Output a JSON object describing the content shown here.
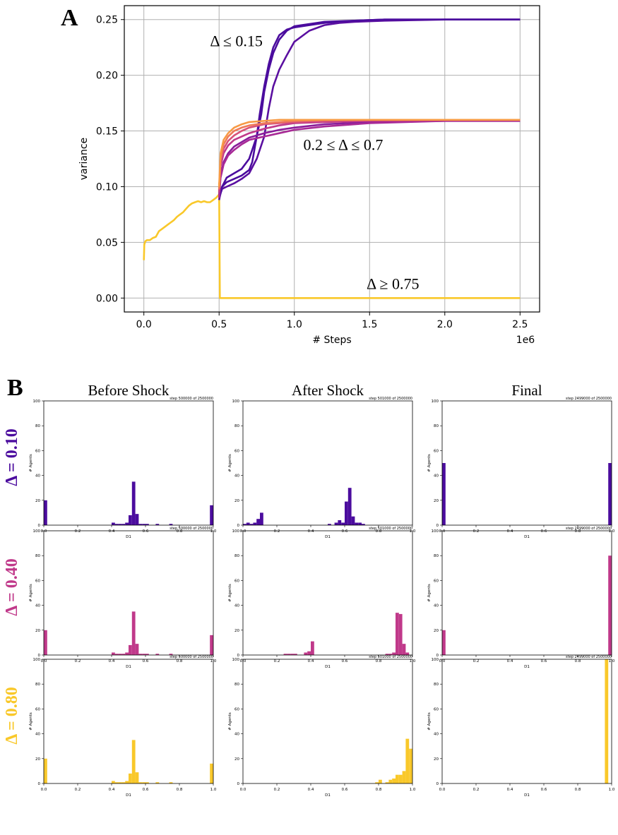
{
  "panel_a_label": "A",
  "panel_b_label": "B",
  "colors": {
    "d010": "#4b0c9e",
    "d040": "#c0398a",
    "d080": "#f9c82a",
    "grid": "#b0b0b0",
    "axis": "#000000"
  },
  "chart_data": [
    {
      "type": "line",
      "panel": "A",
      "xlabel": "# Steps",
      "ylabel": "variance",
      "x_multiplier": "1e6",
      "xlim": [
        -0.13,
        2.63
      ],
      "ylim": [
        -0.0125,
        0.2625
      ],
      "x_ticks": [
        0.0,
        0.5,
        1.0,
        1.5,
        2.0,
        2.5
      ],
      "x_tick_labels": [
        "0.0",
        "0.5",
        "1.0",
        "1.5",
        "2.0",
        "2.5"
      ],
      "y_ticks": [
        0.0,
        0.05,
        0.1,
        0.15,
        0.2,
        0.25
      ],
      "y_tick_labels": [
        "0.00",
        "0.05",
        "0.10",
        "0.15",
        "0.20",
        "0.25"
      ],
      "grid": true,
      "annotations": [
        {
          "text": "Δ ≤ 0.15",
          "x": 0.44,
          "y": 0.226
        },
        {
          "text": "0.2 ≤ Δ ≤ 0.7",
          "x": 1.06,
          "y": 0.133
        },
        {
          "text": "Δ ≥ 0.75",
          "x": 1.48,
          "y": 0.008
        }
      ],
      "series": [
        {
          "color": "#f9c82a",
          "x": [
            0.0,
            0.003,
            0.01,
            0.02,
            0.04,
            0.06,
            0.08,
            0.1,
            0.12,
            0.14,
            0.16,
            0.18,
            0.2,
            0.22,
            0.24,
            0.26,
            0.28,
            0.3,
            0.32,
            0.34,
            0.36,
            0.38,
            0.4,
            0.42,
            0.44,
            0.46,
            0.48,
            0.5
          ],
          "y": [
            0.034,
            0.048,
            0.051,
            0.052,
            0.052,
            0.054,
            0.055,
            0.06,
            0.062,
            0.064,
            0.066,
            0.068,
            0.07,
            0.073,
            0.075,
            0.077,
            0.08,
            0.083,
            0.085,
            0.086,
            0.087,
            0.086,
            0.087,
            0.086,
            0.086,
            0.088,
            0.09,
            0.093
          ]
        },
        {
          "color": "#f9c82a",
          "x": [
            0.5,
            0.5,
            0.505,
            2.5
          ],
          "y": [
            0.093,
            0.103,
            0.0,
            0.0
          ]
        },
        {
          "color": "#4b0c9e",
          "x": [
            0.5,
            0.51,
            0.52,
            0.55,
            0.6,
            0.65,
            0.7,
            0.72,
            0.75,
            0.77,
            0.8,
            0.83,
            0.86,
            0.9,
            0.95,
            1.0,
            1.1,
            1.2,
            1.4,
            1.6,
            2.0,
            2.5
          ],
          "y": [
            0.09,
            0.096,
            0.1,
            0.104,
            0.107,
            0.11,
            0.115,
            0.122,
            0.145,
            0.165,
            0.19,
            0.21,
            0.225,
            0.236,
            0.241,
            0.243,
            0.245,
            0.247,
            0.249,
            0.25,
            0.25,
            0.25
          ]
        },
        {
          "color": "#5a0fa0",
          "x": [
            0.5,
            0.51,
            0.52,
            0.55,
            0.6,
            0.65,
            0.7,
            0.75,
            0.8,
            0.83,
            0.86,
            0.9,
            0.95,
            1.0,
            1.1,
            1.2,
            1.3,
            1.4,
            1.6,
            2.0,
            2.5
          ],
          "y": [
            0.088,
            0.094,
            0.098,
            0.1,
            0.103,
            0.107,
            0.112,
            0.125,
            0.145,
            0.17,
            0.19,
            0.205,
            0.218,
            0.23,
            0.24,
            0.245,
            0.247,
            0.248,
            0.249,
            0.25,
            0.25
          ]
        },
        {
          "color": "#4b0c9e",
          "x": [
            0.5,
            0.51,
            0.52,
            0.55,
            0.6,
            0.65,
            0.7,
            0.75,
            0.78,
            0.8,
            0.83,
            0.86,
            0.9,
            0.95,
            1.0,
            1.1,
            1.2,
            1.4,
            1.6,
            2.0,
            2.5
          ],
          "y": [
            0.09,
            0.094,
            0.1,
            0.108,
            0.112,
            0.116,
            0.125,
            0.145,
            0.165,
            0.185,
            0.205,
            0.22,
            0.232,
            0.24,
            0.244,
            0.246,
            0.248,
            0.249,
            0.25,
            0.25,
            0.25
          ]
        },
        {
          "color": "#8a1c9a",
          "x": [
            0.5,
            0.51,
            0.53,
            0.56,
            0.6,
            0.65,
            0.7,
            0.8,
            0.9,
            1.0,
            1.2,
            1.5,
            2.0,
            2.5
          ],
          "y": [
            0.092,
            0.11,
            0.122,
            0.13,
            0.136,
            0.14,
            0.144,
            0.148,
            0.151,
            0.153,
            0.156,
            0.158,
            0.159,
            0.159
          ]
        },
        {
          "color": "#a82a96",
          "x": [
            0.5,
            0.51,
            0.53,
            0.56,
            0.6,
            0.65,
            0.7,
            0.8,
            0.9,
            1.0,
            1.2,
            1.5,
            2.0,
            2.5
          ],
          "y": [
            0.09,
            0.108,
            0.12,
            0.128,
            0.133,
            0.138,
            0.142,
            0.145,
            0.148,
            0.151,
            0.154,
            0.157,
            0.159,
            0.159
          ]
        },
        {
          "color": "#c0398a",
          "x": [
            0.5,
            0.51,
            0.53,
            0.56,
            0.6,
            0.65,
            0.7,
            0.8,
            0.9,
            1.0,
            1.2,
            1.5,
            2.0,
            2.5
          ],
          "y": [
            0.095,
            0.118,
            0.13,
            0.137,
            0.142,
            0.145,
            0.148,
            0.152,
            0.155,
            0.157,
            0.158,
            0.159,
            0.16,
            0.16
          ]
        },
        {
          "color": "#d8527a",
          "x": [
            0.5,
            0.51,
            0.53,
            0.56,
            0.6,
            0.65,
            0.7,
            0.8,
            0.9,
            1.0,
            1.2,
            1.5,
            2.0,
            2.5
          ],
          "y": [
            0.097,
            0.122,
            0.134,
            0.141,
            0.146,
            0.15,
            0.153,
            0.156,
            0.157,
            0.158,
            0.159,
            0.16,
            0.16,
            0.16
          ]
        },
        {
          "color": "#ef7a58",
          "x": [
            0.5,
            0.51,
            0.53,
            0.56,
            0.6,
            0.65,
            0.7,
            0.8,
            0.9,
            1.0,
            1.2,
            1.5,
            2.0,
            2.5
          ],
          "y": [
            0.098,
            0.125,
            0.138,
            0.145,
            0.15,
            0.153,
            0.155,
            0.157,
            0.158,
            0.159,
            0.16,
            0.16,
            0.16,
            0.16
          ]
        },
        {
          "color": "#f79a45",
          "x": [
            0.5,
            0.51,
            0.53,
            0.56,
            0.6,
            0.65,
            0.7,
            0.8,
            0.9,
            1.0,
            1.2,
            1.5,
            2.0,
            2.5
          ],
          "y": [
            0.1,
            0.13,
            0.142,
            0.148,
            0.153,
            0.156,
            0.158,
            0.159,
            0.16,
            0.16,
            0.16,
            0.16,
            0.16,
            0.16
          ]
        }
      ]
    },
    {
      "type": "bar",
      "panel": "B",
      "column_titles": [
        "Before Shock",
        "After Shock",
        "Final"
      ],
      "row_labels": [
        "Δ = 0.10",
        "Δ = 0.40",
        "Δ = 0.80"
      ],
      "row_colors": [
        "#4b0c9e",
        "#c0398a",
        "#f9c82a"
      ],
      "step_texts": [
        "step 500000 of 2500000",
        "step 501000 of 2500000",
        "step 2499000 of 2500000"
      ],
      "xlabel": "D1",
      "ylabel": "# Agents",
      "xlim": [
        0.0,
        1.0
      ],
      "ylim": [
        0,
        100
      ],
      "x_ticks": [
        0.0,
        0.2,
        0.4,
        0.6,
        0.8,
        1.0
      ],
      "x_tick_labels": [
        "0.0",
        "0.2",
        "0.4",
        "0.6",
        "0.8",
        "1.0"
      ],
      "y_ticks": [
        0,
        20,
        40,
        60,
        80,
        100
      ],
      "y_tick_labels": [
        "0",
        "20",
        "40",
        "60",
        "80",
        "100"
      ],
      "bin_width": 0.02,
      "panels": [
        [
          {
            "bins": [
              0.0,
              0.4,
              0.42,
              0.44,
              0.46,
              0.48,
              0.5,
              0.52,
              0.54,
              0.56,
              0.58,
              0.6,
              0.66,
              0.74,
              0.98
            ],
            "counts": [
              20,
              2,
              1,
              1,
              1,
              2,
              8,
              35,
              9,
              1,
              1,
              1,
              1,
              1,
              16
            ]
          },
          {
            "bins": [
              0.0,
              0.02,
              0.04,
              0.06,
              0.08,
              0.1,
              0.5,
              0.54,
              0.56,
              0.58,
              0.6,
              0.62,
              0.64,
              0.66,
              0.68,
              0.7
            ],
            "counts": [
              1,
              2,
              1,
              2,
              5,
              10,
              1,
              2,
              4,
              2,
              19,
              30,
              7,
              2,
              2,
              1
            ]
          },
          {
            "bins": [
              0.0,
              0.98
            ],
            "counts": [
              50,
              50
            ]
          }
        ],
        [
          {
            "bins": [
              0.0,
              0.4,
              0.42,
              0.44,
              0.46,
              0.48,
              0.5,
              0.52,
              0.54,
              0.56,
              0.58,
              0.6,
              0.66,
              0.74,
              0.98
            ],
            "counts": [
              20,
              2,
              1,
              1,
              1,
              2,
              8,
              35,
              9,
              1,
              1,
              1,
              1,
              1,
              16
            ]
          },
          {
            "bins": [
              0.24,
              0.26,
              0.28,
              0.3,
              0.36,
              0.38,
              0.4,
              0.84,
              0.86,
              0.88,
              0.9,
              0.92,
              0.94,
              0.96
            ],
            "counts": [
              1,
              1,
              1,
              1,
              2,
              3,
              11,
              1,
              1,
              2,
              34,
              33,
              9,
              2
            ]
          },
          {
            "bins": [
              0.0,
              0.98
            ],
            "counts": [
              20,
              80
            ]
          }
        ],
        [
          {
            "bins": [
              0.0,
              0.4,
              0.42,
              0.44,
              0.46,
              0.48,
              0.5,
              0.52,
              0.54,
              0.56,
              0.58,
              0.6,
              0.66,
              0.74,
              0.98
            ],
            "counts": [
              20,
              2,
              1,
              1,
              1,
              2,
              8,
              35,
              9,
              1,
              1,
              1,
              1,
              1,
              16
            ]
          },
          {
            "bins": [
              0.78,
              0.8,
              0.84,
              0.86,
              0.88,
              0.9,
              0.92,
              0.94,
              0.96,
              0.98
            ],
            "counts": [
              1,
              3,
              1,
              3,
              4,
              7,
              7,
              10,
              36,
              28
            ]
          },
          {
            "bins": [
              0.96
            ],
            "counts": [
              100
            ]
          }
        ]
      ]
    }
  ]
}
